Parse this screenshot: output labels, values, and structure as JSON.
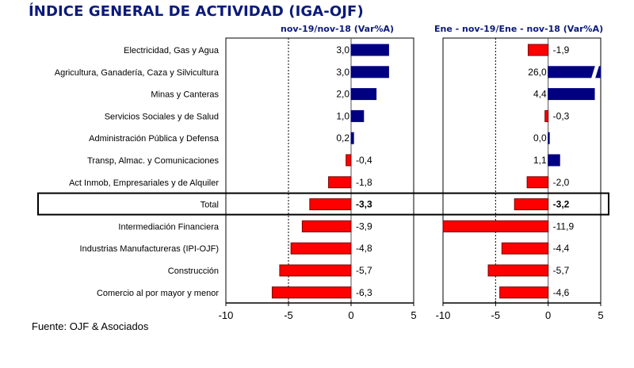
{
  "title": "ÍNDICE GENERAL DE ACTIVIDAD (IGA-OJF)",
  "source": "Fuente: OJF & Asociados",
  "colors": {
    "title": "#0b1a7a",
    "positive": "#000080",
    "negative": "#ff0000",
    "negative_border": "#7a0000"
  },
  "chart_data": [
    {
      "type": "bar",
      "orientation": "horizontal",
      "title": "nov-19/nov-18  (Var%A)",
      "categories": [
        "Electricidad, Gas y Agua",
        "Agricultura, Ganadería, Caza y Silvicultura",
        "Minas y Canteras",
        "Servicios Sociales y de Salud",
        "Administración Pública y Defensa",
        "Transp, Almac. y Comunicaciones",
        "Act Inmob, Empresariales y de Alquiler",
        "Total",
        "Intermediación Financiera",
        "Industrias Manufactureras (IPI-OJF)",
        "Construcción",
        "Comercio al por mayor y menor"
      ],
      "values": [
        3.0,
        3.0,
        2.0,
        1.0,
        0.2,
        -0.4,
        -1.8,
        -3.3,
        -3.9,
        -4.8,
        -5.7,
        -6.3
      ],
      "labels": [
        "3,0",
        "3,0",
        "2,0",
        "1,0",
        "0,2",
        "-0,4",
        "-1,8",
        "-3,3",
        "-3,9",
        "-4,8",
        "-5,7",
        "-6,3"
      ],
      "highlight_category": "Total",
      "xlim": [
        -10,
        5
      ],
      "xticks": [
        -10,
        -5,
        0,
        5
      ],
      "xtick_labels": [
        "-10",
        "-5",
        "0",
        "5"
      ],
      "reference_line": -5,
      "xlabel": "",
      "ylabel": ""
    },
    {
      "type": "bar",
      "orientation": "horizontal",
      "title": "Ene - nov-19/Ene - nov-18  (Var%A)",
      "categories": [
        "Electricidad, Gas y Agua",
        "Agricultura, Ganadería, Caza y Silvicultura",
        "Minas y Canteras",
        "Servicios Sociales y de Salud",
        "Administración Pública y Defensa",
        "Transp, Almac. y Comunicaciones",
        "Act Inmob, Empresariales y de Alquiler",
        "Total",
        "Intermediación Financiera",
        "Industrias Manufactureras (IPI-OJF)",
        "Construcción",
        "Comercio al por mayor y menor"
      ],
      "values": [
        -1.9,
        26.0,
        4.4,
        -0.3,
        0.0,
        1.1,
        -2.0,
        -3.2,
        -11.9,
        -4.4,
        -5.7,
        -4.6
      ],
      "labels": [
        "-1,9",
        "26,0",
        "4,4",
        "-0,3",
        "0,0",
        "1,1",
        "-2,0",
        "-3,2",
        "-11,9",
        "-4,4",
        "-5,7",
        "-4,6"
      ],
      "highlight_category": "Total",
      "broken_bars": [
        "Agricultura, Ganadería, Caza y Silvicultura"
      ],
      "xlim": [
        -10,
        5
      ],
      "xticks": [
        -10,
        -5,
        0,
        5
      ],
      "xtick_labels": [
        "-10",
        "-5",
        "0",
        "5"
      ],
      "reference_line": -5,
      "xlabel": "",
      "ylabel": ""
    }
  ]
}
